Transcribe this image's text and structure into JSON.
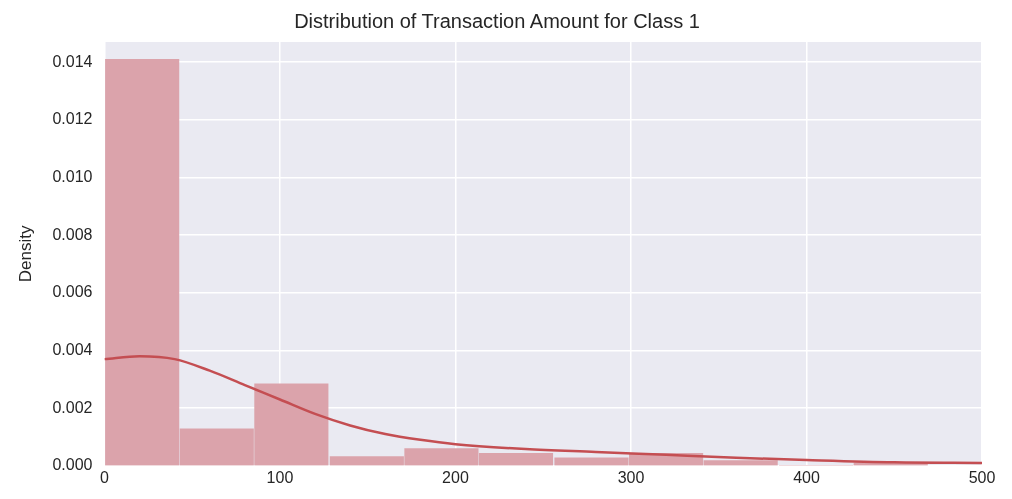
{
  "chart_data": {
    "type": "histogram",
    "title": "Distribution of Transaction Amount for Class 1",
    "ylabel": "Density",
    "bins": [
      0,
      43,
      85,
      128,
      171,
      213,
      256,
      299,
      341,
      384,
      427,
      469
    ],
    "values": [
      0.0141,
      0.00128,
      0.00284,
      0.00032,
      0.0006,
      0.00043,
      0.00028,
      0.00043,
      0.00018,
      0,
      0.0001
    ],
    "color": "#dba3ab",
    "series": [
      {
        "type": "line",
        "color": "#c44e52",
        "x": [
          0,
          20,
          40,
          60,
          80,
          100,
          120,
          140,
          160,
          180,
          200,
          240,
          280,
          320,
          360,
          400,
          450,
          500
        ],
        "values": [
          0.0037,
          0.0038,
          0.0037,
          0.0033,
          0.0028,
          0.0023,
          0.0018,
          0.0014,
          0.0011,
          0.0009,
          0.00075,
          0.00058,
          0.00048,
          0.00038,
          0.00028,
          0.0002,
          0.00012,
          0.0001
        ]
      }
    ],
    "xlim": [
      0,
      500
    ],
    "xticks": [
      0,
      100,
      200,
      300,
      400,
      500
    ],
    "ylim": [
      0,
      0.0147
    ],
    "yticks": [
      {
        "value": 0,
        "label": "0.000"
      },
      {
        "value": 0.002,
        "label": "0.002"
      },
      {
        "value": 0.004,
        "label": "0.004"
      },
      {
        "value": 0.006,
        "label": "0.006"
      },
      {
        "value": 0.008,
        "label": "0.008"
      },
      {
        "value": 0.01,
        "label": "0.010"
      },
      {
        "value": 0.012,
        "label": "0.012"
      },
      {
        "value": 0.014,
        "label": "0.014"
      }
    ],
    "grid": true,
    "legend": false
  }
}
